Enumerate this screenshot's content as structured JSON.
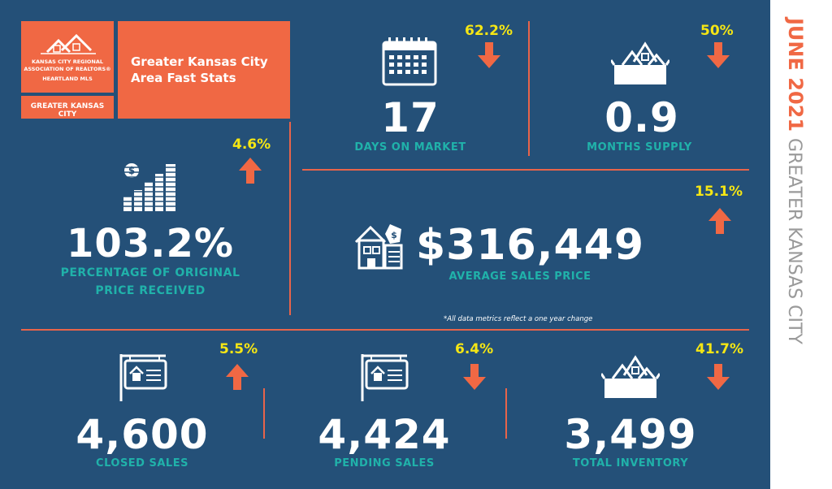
{
  "header": {
    "logo_lines": [
      "KANSAS CITY REGIONAL",
      "ASSOCIATION OF REALTORS®",
      "HEARTLAND MLS"
    ],
    "region_box": "GREATER KANSAS CITY",
    "title": "Greater Kansas City Area Fast Stats"
  },
  "side": {
    "date": "JUNE 2021",
    "region": "GREATER KANSAS CITY"
  },
  "stats": {
    "days_on_market": {
      "value": "17",
      "label": "DAYS ON MARKET",
      "change": "62.2%",
      "direction": "down"
    },
    "months_supply": {
      "value": "0.9",
      "label": "MONTHS SUPPLY",
      "change": "50%",
      "direction": "down"
    },
    "pct_original_price": {
      "value": "103.2%",
      "label_line1": "PERCENTAGE OF ORIGINAL",
      "label_line2": "PRICE RECEIVED",
      "change": "4.6%",
      "direction": "up"
    },
    "avg_sales_price": {
      "value": "$316,449",
      "label": "AVERAGE SALES PRICE",
      "change": "15.1%",
      "direction": "up"
    },
    "closed_sales": {
      "value": "4,600",
      "label": "CLOSED SALES",
      "change": "5.5%",
      "direction": "up"
    },
    "pending_sales": {
      "value": "4,424",
      "label": "PENDING SALES",
      "change": "6.4%",
      "direction": "down"
    },
    "total_inventory": {
      "value": "3,499",
      "label": "TOTAL INVENTORY",
      "change": "41.7%",
      "direction": "down"
    }
  },
  "footnote": "*All data metrics reflect a one year change",
  "colors": {
    "panel": "#245078",
    "accent": "#f06844",
    "teal": "#20b2aa",
    "yellow": "#f5e614",
    "side_date": "#f06844",
    "side_region": "#9a9a9a"
  },
  "icons": {
    "days_on_market": "calendar-icon",
    "months_supply": "houses-box-icon",
    "pct_original_price": "money-bar-chart-icon",
    "avg_sales_price": "house-price-tag-icon",
    "closed_sales": "sale-sign-icon",
    "pending_sales": "sale-sign-icon",
    "total_inventory": "houses-box-icon"
  }
}
